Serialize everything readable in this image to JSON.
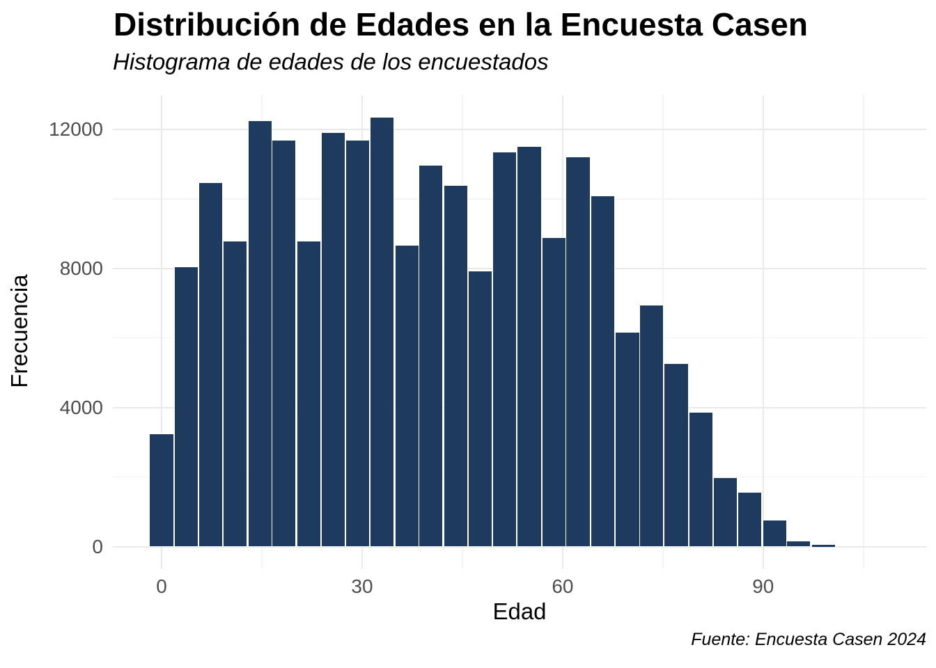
{
  "chart": {
    "title": "Distribución de Edades en la Encuesta Casen",
    "subtitle": "Histograma de edades de los encuestados",
    "caption": "Fuente: Encuesta Casen 2024",
    "xlabel": "Edad",
    "ylabel": "Frecuencia"
  },
  "chart_data": {
    "type": "bar",
    "subtype": "histogram",
    "title": "Distribución de Edades en la Encuesta Casen",
    "subtitle": "Histograma de edades de los encuestados",
    "caption": "Fuente: Encuesta Casen 2024",
    "xlabel": "Edad",
    "ylabel": "Frecuencia",
    "bin_width": 3.67,
    "bin_centers": [
      0,
      3.7,
      7.3,
      11,
      14.7,
      18.3,
      22,
      25.7,
      29.3,
      33,
      36.7,
      40.3,
      44,
      47.7,
      51.3,
      55,
      58.7,
      62.3,
      66,
      69.7,
      73.3,
      77,
      80.7,
      84.3,
      88,
      91.7,
      95.3,
      99
    ],
    "counts": [
      3260,
      8050,
      10480,
      8800,
      12260,
      11700,
      8800,
      11920,
      11700,
      12360,
      8670,
      10970,
      10400,
      7930,
      11350,
      11510,
      8900,
      11220,
      10090,
      6170,
      6950,
      5280,
      3880,
      1990,
      1580,
      780,
      170,
      45
    ],
    "x_major_ticks": [
      0,
      30,
      60,
      90
    ],
    "x_minor_ticks": [
      15,
      45,
      75,
      105
    ],
    "y_major_ticks": [
      0,
      4000,
      8000,
      12000
    ],
    "y_minor_ticks": [
      2000,
      6000,
      10000
    ],
    "xlim": [
      -7.3,
      114.4
    ],
    "ylim": [
      -630,
      12980
    ],
    "grid": "major-and-minor",
    "legend": "none",
    "colors": {
      "bar_fill": "#1e3a5f",
      "bar_stroke": "#ffffff",
      "grid_major": "#e9e9e9",
      "grid_minor": "#f4f4f4",
      "tick_label": "#4d4d4d",
      "text": "#000000",
      "background": "#ffffff"
    }
  }
}
